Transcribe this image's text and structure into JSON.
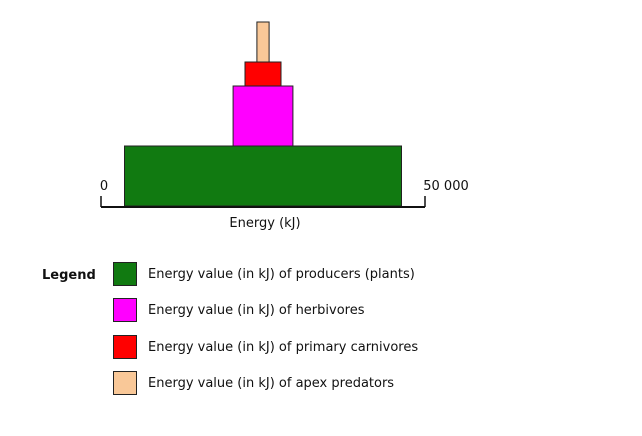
{
  "chart_data": {
    "type": "bar",
    "subtype": "energy-pyramid",
    "orientation": "horizontal-centered",
    "xlabel": "Energy (kJ)",
    "xlim": [
      0,
      50000
    ],
    "tick_labels": {
      "min": "0",
      "max": "50 000"
    },
    "categories": [
      "Producers (plants)",
      "Herbivores",
      "Primary carnivores",
      "Apex predators"
    ],
    "values": [
      50000,
      10800,
      6500,
      2200
    ],
    "colors": [
      "#117a11",
      "#ff00ff",
      "#ff0000",
      "#f9c898"
    ],
    "grid": false
  },
  "legend": {
    "title": "Legend",
    "items": [
      {
        "label": "Energy value (in kJ) of producers (plants)",
        "color": "#117a11"
      },
      {
        "label": "Energy value (in kJ) of herbivores",
        "color": "#ff00ff"
      },
      {
        "label": "Energy value (in kJ) of primary carnivores",
        "color": "#ff0000"
      },
      {
        "label": "Energy value (in kJ) of apex predators",
        "color": "#f9c898"
      }
    ]
  }
}
